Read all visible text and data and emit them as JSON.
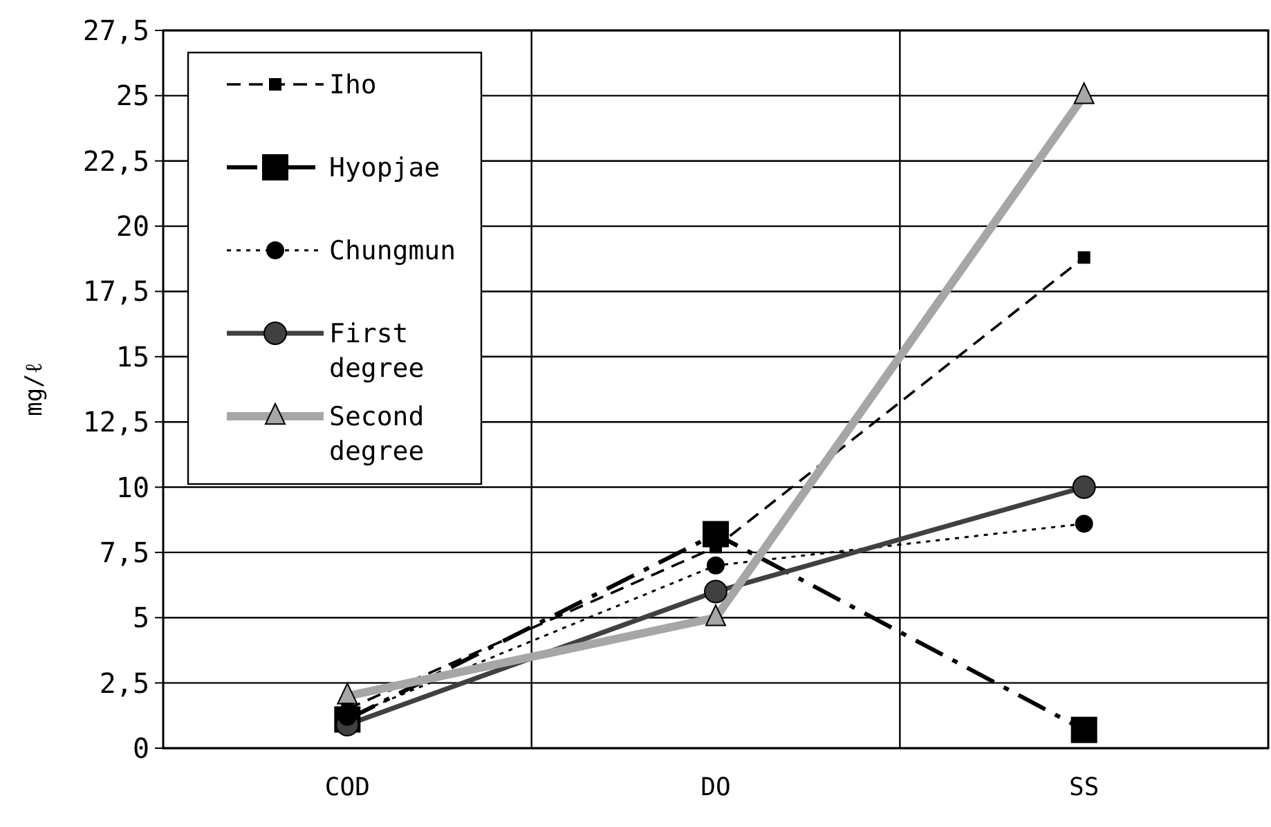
{
  "chart_data": {
    "type": "line",
    "ylabel": "mg/ℓ",
    "categories": [
      "COD",
      "DO",
      "SS"
    ],
    "ylim": [
      0,
      27.5
    ],
    "yticks": [
      0,
      {
        "value": 2.5,
        "label": "2,5"
      },
      5,
      {
        "value": 7.5,
        "label": "7,5"
      },
      10,
      {
        "value": 12.5,
        "label": "12,5"
      },
      15,
      {
        "value": 17.5,
        "label": "17,5"
      },
      20,
      {
        "value": 22.5,
        "label": "22,5"
      },
      25,
      {
        "value": 27.5,
        "label": "27,5"
      }
    ],
    "grid": true,
    "legend": "top left",
    "series": [
      {
        "name": "Iho",
        "color": "#000000",
        "values": [
          1.5,
          7.7,
          18.8
        ],
        "line_style": "dashed",
        "marker": "square"
      },
      {
        "name": "Hyopjae",
        "color": "#000000",
        "values": [
          1.1,
          8.2,
          0.7
        ],
        "line_style": "dashed",
        "marker": "square"
      },
      {
        "name": "Chungmun",
        "color": "#000000",
        "values": [
          1.2,
          7,
          8.6
        ],
        "line_style": "dotted",
        "marker": "circle"
      },
      {
        "name": "First degree",
        "color": "#404040",
        "values": [
          0.9,
          6,
          10
        ],
        "line_style": "solid",
        "marker": "circle"
      },
      {
        "name": "Second degree",
        "color": "#a6a6a6",
        "values": [
          2,
          5,
          25
        ],
        "line_style": "solid",
        "marker": "triangle"
      }
    ]
  }
}
